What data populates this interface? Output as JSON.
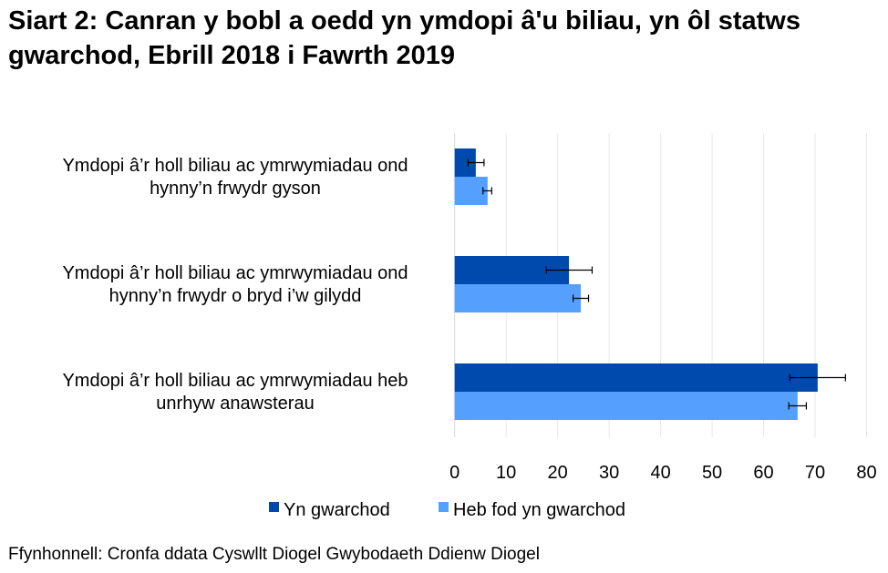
{
  "chart_data": {
    "type": "bar",
    "orientation": "horizontal",
    "title": "Siart 2: Canran y bobl a oedd yn ymdopi â'u biliau, yn ôl statws gwarchod, Ebrill 2018 i Fawrth 2019",
    "categories": [
      [
        "Ymdopi â’r holl biliau ac ymrwymiadau ond",
        "hynny’n frwydr gyson"
      ],
      [
        "Ymdopi â’r holl biliau ac ymrwymiadau ond",
        "hynny’n frwydr o bryd i’w gilydd"
      ],
      [
        "Ymdopi â’r holl biliau ac ymrwymiadau heb",
        "unrhyw anawsterau"
      ]
    ],
    "series": [
      {
        "name": "Yn gwarchod",
        "color": "#004AAD",
        "values": [
          4.1,
          22.2,
          70.5
        ],
        "error_low": [
          2.6,
          17.8,
          65.1
        ],
        "error_high": [
          5.7,
          26.7,
          75.9
        ]
      },
      {
        "name": "Heb fod yn gwarchod",
        "color": "#559FFF",
        "values": [
          6.4,
          24.5,
          66.6
        ],
        "error_low": [
          5.5,
          23.0,
          64.9
        ],
        "error_high": [
          7.2,
          26.0,
          68.3
        ]
      }
    ],
    "xlim": [
      0,
      80
    ],
    "xticks": [
      "0",
      "10",
      "20",
      "30",
      "40",
      "50",
      "60",
      "70",
      "80"
    ],
    "grid": "vertical",
    "legend": "bottom",
    "source": "Ffynhonnell: Cronfa ddata Cyswllt Diogel Gwybodaeth Ddienw Diogel"
  }
}
